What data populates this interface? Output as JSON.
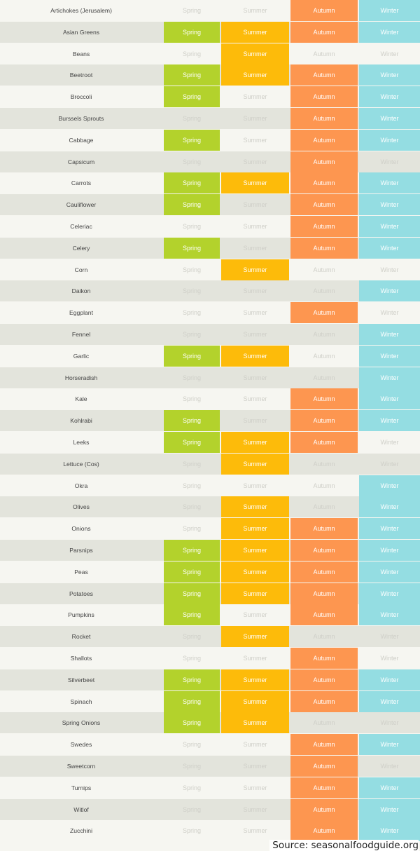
{
  "seasons": [
    "Spring",
    "Summer",
    "Autumn",
    "Winter"
  ],
  "colors": {
    "spring": "#b3d22c",
    "summer": "#fdbb0a",
    "autumn": "#fd9650",
    "winter": "#94dde2",
    "row_light": "#f6f6f1",
    "row_dark": "#e3e4dc",
    "off_text": "#cfcfc8"
  },
  "rows": [
    {
      "name": "Artichokes (Jerusalem)",
      "spring": false,
      "summer": false,
      "autumn": true,
      "winter": true
    },
    {
      "name": "Asian Greens",
      "spring": true,
      "summer": true,
      "autumn": true,
      "winter": true
    },
    {
      "name": "Beans",
      "spring": false,
      "summer": true,
      "autumn": false,
      "winter": false
    },
    {
      "name": "Beetroot",
      "spring": true,
      "summer": true,
      "autumn": true,
      "winter": true
    },
    {
      "name": "Broccoli",
      "spring": true,
      "summer": false,
      "autumn": true,
      "winter": true
    },
    {
      "name": "Burssels Sprouts",
      "spring": false,
      "summer": false,
      "autumn": true,
      "winter": true
    },
    {
      "name": "Cabbage",
      "spring": true,
      "summer": false,
      "autumn": true,
      "winter": true
    },
    {
      "name": "Capsicum",
      "spring": false,
      "summer": false,
      "autumn": true,
      "winter": false
    },
    {
      "name": "Carrots",
      "spring": true,
      "summer": true,
      "autumn": true,
      "winter": true
    },
    {
      "name": "Cauliflower",
      "spring": true,
      "summer": false,
      "autumn": true,
      "winter": true
    },
    {
      "name": "Celeriac",
      "spring": false,
      "summer": false,
      "autumn": true,
      "winter": true
    },
    {
      "name": "Celery",
      "spring": true,
      "summer": false,
      "autumn": true,
      "winter": true
    },
    {
      "name": "Corn",
      "spring": false,
      "summer": true,
      "autumn": false,
      "winter": false
    },
    {
      "name": "Daikon",
      "spring": false,
      "summer": false,
      "autumn": false,
      "winter": true
    },
    {
      "name": "Eggplant",
      "spring": false,
      "summer": false,
      "autumn": true,
      "winter": false
    },
    {
      "name": "Fennel",
      "spring": false,
      "summer": false,
      "autumn": false,
      "winter": true
    },
    {
      "name": "Garlic",
      "spring": true,
      "summer": true,
      "autumn": false,
      "winter": true
    },
    {
      "name": "Horseradish",
      "spring": false,
      "summer": false,
      "autumn": false,
      "winter": true
    },
    {
      "name": "Kale",
      "spring": false,
      "summer": false,
      "autumn": true,
      "winter": true
    },
    {
      "name": "Kohlrabi",
      "spring": true,
      "summer": false,
      "autumn": true,
      "winter": true
    },
    {
      "name": "Leeks",
      "spring": true,
      "summer": true,
      "autumn": true,
      "winter": false
    },
    {
      "name": "Lettuce (Cos)",
      "spring": false,
      "summer": true,
      "autumn": false,
      "winter": false
    },
    {
      "name": "Okra",
      "spring": false,
      "summer": false,
      "autumn": false,
      "winter": true
    },
    {
      "name": "Olives",
      "spring": false,
      "summer": true,
      "autumn": false,
      "winter": true
    },
    {
      "name": "Onions",
      "spring": false,
      "summer": true,
      "autumn": true,
      "winter": true
    },
    {
      "name": "Parsnips",
      "spring": true,
      "summer": true,
      "autumn": true,
      "winter": true
    },
    {
      "name": "Peas",
      "spring": true,
      "summer": true,
      "autumn": true,
      "winter": true
    },
    {
      "name": "Potatoes",
      "spring": true,
      "summer": true,
      "autumn": true,
      "winter": true
    },
    {
      "name": "Pumpkins",
      "spring": true,
      "summer": false,
      "autumn": true,
      "winter": true
    },
    {
      "name": "Rocket",
      "spring": false,
      "summer": true,
      "autumn": false,
      "winter": false
    },
    {
      "name": "Shallots",
      "spring": false,
      "summer": false,
      "autumn": true,
      "winter": false
    },
    {
      "name": "Silverbeet",
      "spring": true,
      "summer": true,
      "autumn": true,
      "winter": true
    },
    {
      "name": "Spinach",
      "spring": true,
      "summer": true,
      "autumn": true,
      "winter": true
    },
    {
      "name": "Spring Onions",
      "spring": true,
      "summer": true,
      "autumn": false,
      "winter": false
    },
    {
      "name": "Swedes",
      "spring": false,
      "summer": false,
      "autumn": true,
      "winter": true
    },
    {
      "name": "Sweetcorn",
      "spring": false,
      "summer": false,
      "autumn": true,
      "winter": false
    },
    {
      "name": "Turnips",
      "spring": false,
      "summer": false,
      "autumn": true,
      "winter": true
    },
    {
      "name": "Witlof",
      "spring": false,
      "summer": false,
      "autumn": true,
      "winter": true
    },
    {
      "name": "Zucchini",
      "spring": false,
      "summer": false,
      "autumn": true,
      "winter": true
    }
  ],
  "source": "Source: seasonalfoodguide.org"
}
